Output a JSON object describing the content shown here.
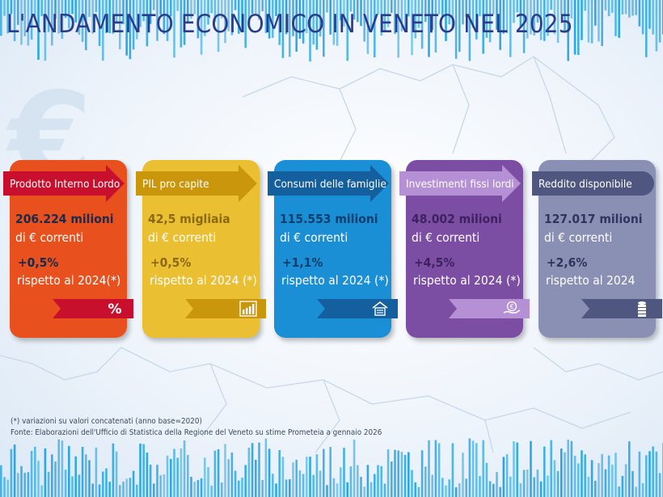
{
  "title": "L'ANDAMENTO ECONOMICO IN VENETO NEL 2025",
  "background_icon": "euro-sign",
  "cards": [
    {
      "label": "Prodotto Interno Lordo",
      "value": "206.224",
      "unit": "milioni",
      "unit_line": "di € correnti",
      "change": "+0,5%",
      "compare": "rispetto al 2024(*)",
      "icon": "percent-icon",
      "color": "#e8501d",
      "banner_color": "#c8102e",
      "text_color": "#1a2a4a"
    },
    {
      "label": "PIL pro capite",
      "value": "42,5",
      "unit": "migliaia",
      "unit_line": "di € correnti",
      "change": "+0,5%",
      "compare": "rispetto al 2024 (*)",
      "icon": "bar-chart-icon",
      "color": "#ebbf32",
      "banner_color": "#c9960c",
      "text_color": "#8a6a10"
    },
    {
      "label": "Consumi delle famiglie",
      "value": "115.553",
      "unit": "milioni",
      "unit_line": "di € correnti",
      "change": "+1,1%",
      "compare": "rispetto al 2024 (*)",
      "icon": "house-icon",
      "color": "#1a8fd5",
      "banner_color": "#145f9e",
      "text_color": "#0d3f6e"
    },
    {
      "label": "Investimenti fissi lordi",
      "value": "48.002",
      "unit": "milioni",
      "unit_line": "di € correnti",
      "change": "+4,5%",
      "compare": "rispetto al 2024 (*)",
      "icon": "hand-euro-icon",
      "color": "#7c4ea3",
      "banner_color": "#b690d4",
      "text_color": "#3d2160"
    },
    {
      "label": "Reddito disponibile",
      "value": "127.017",
      "unit": "milioni",
      "unit_line": "di € correnti",
      "change": "+2,6%",
      "compare": "rispetto al 2024",
      "icon": "coins-icon",
      "color": "#8a90b4",
      "banner_color": "#4f5780",
      "text_color": "#2d3560"
    }
  ],
  "notes": {
    "line1": "(*) variazioni su valori concatenati (anno base=2020)",
    "line2": "Fonte: Elaborazioni dell'Ufficio di Statistica della Regione del Veneto su stime Prometeia a gennaio 2026"
  }
}
